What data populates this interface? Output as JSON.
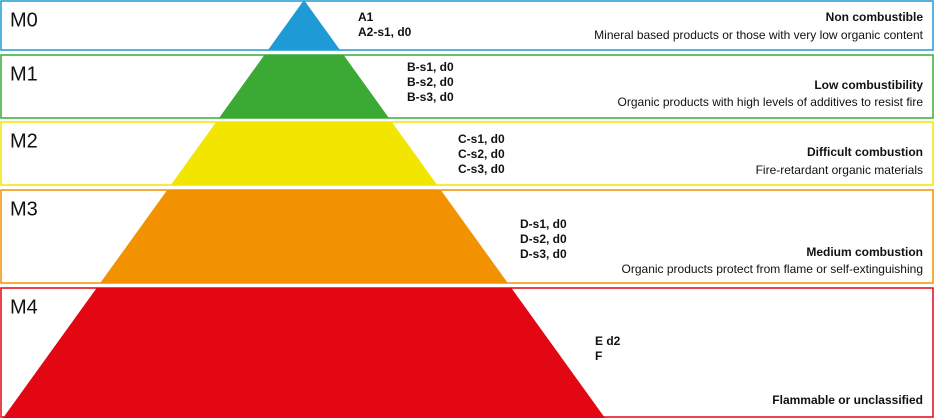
{
  "levels": [
    {
      "label": "M0",
      "classes": [
        "A1",
        "A2-s1, d0"
      ],
      "title": "Non combustible",
      "description": "Mineral based products or those with very low organic content"
    },
    {
      "label": "M1",
      "classes": [
        "B-s1, d0",
        "B-s2, d0",
        "B-s3, d0"
      ],
      "title": "Low combustibility",
      "description": "Organic products with high levels of additives to resist fire"
    },
    {
      "label": "M2",
      "classes": [
        "C-s1, d0",
        "C-s2, d0",
        "C-s3, d0"
      ],
      "title": "Difficult combustion",
      "description": "Fire-retardant organic materials"
    },
    {
      "label": "M3",
      "classes": [
        "D-s1, d0",
        "D-s2, d0",
        "D-s3, d0"
      ],
      "title": "Medium combustion",
      "description": "Organic products protect from flame or self-extinguishing"
    },
    {
      "label": "M4",
      "classes": [
        "E d2",
        "F"
      ],
      "title": "Flammable or unclassified"
    }
  ]
}
